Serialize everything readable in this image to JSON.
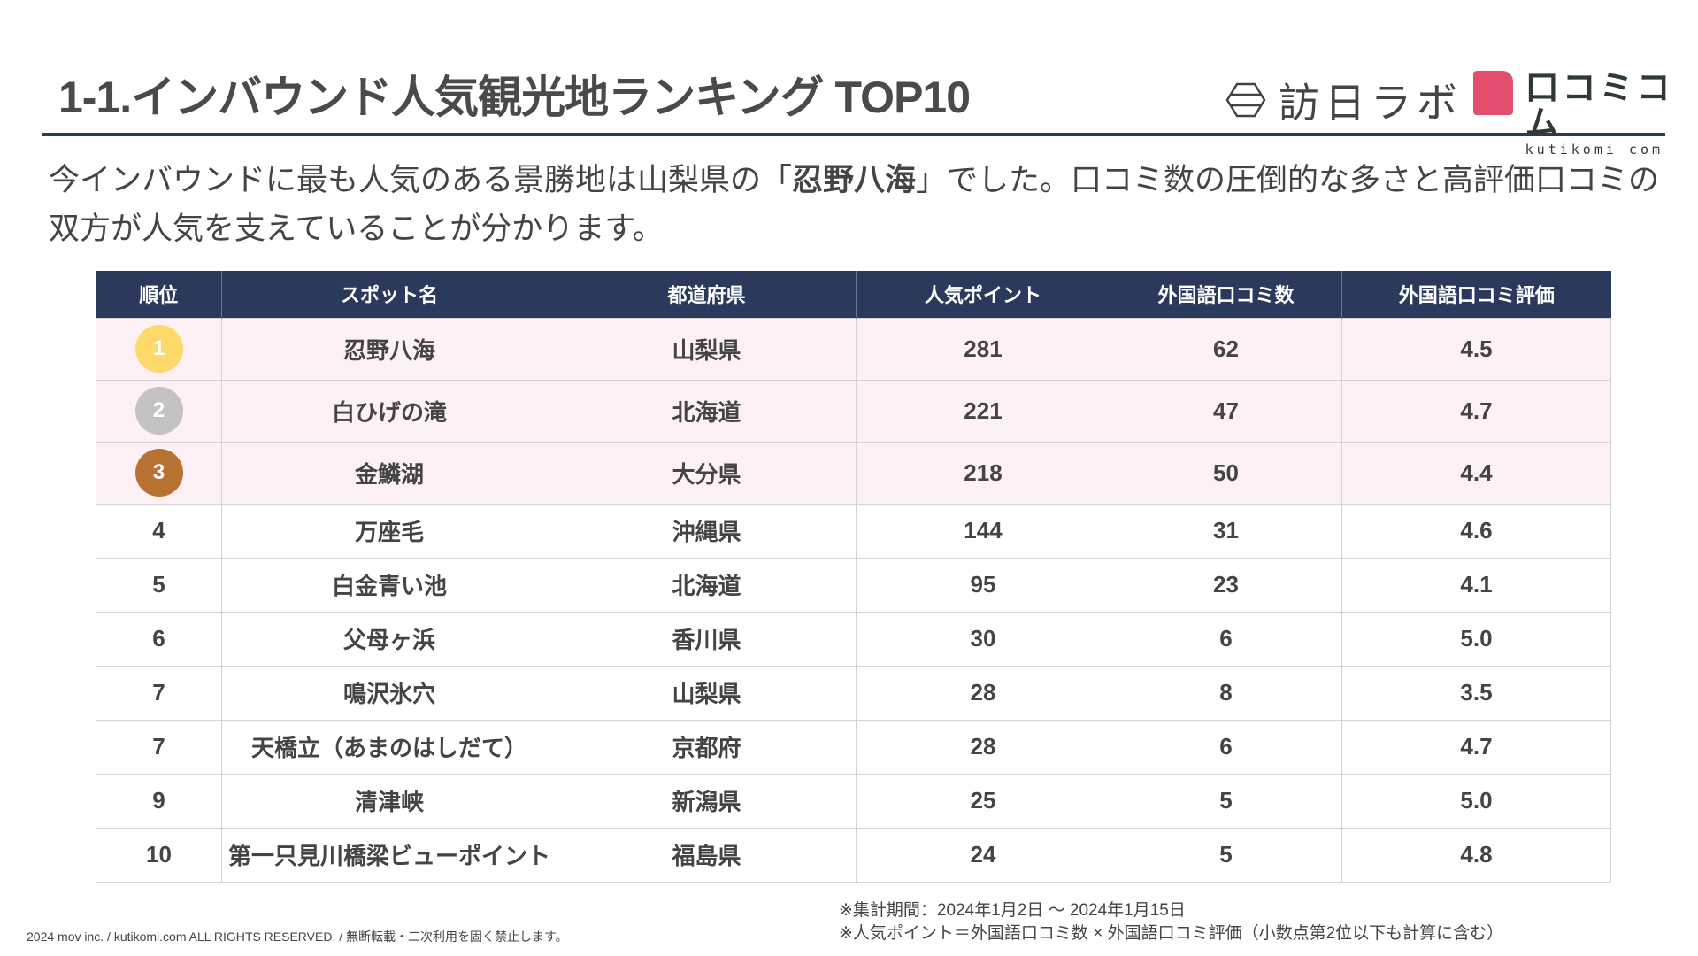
{
  "header": {
    "title": "1-1.インバウンド人気観光地ランキング TOP10",
    "logo_left": "訪日ラボ",
    "logo_right_jp": "口コミコム",
    "logo_right_en": "kutikomi com"
  },
  "lead": {
    "before": "今インバウンドに最も人気のある景勝地は山梨県の「",
    "bold": "忍野八海",
    "after": "」でした。口コミ数の圧倒的な多さと高評価口コミの双方が人気を支えていることが分かります。"
  },
  "table": {
    "columns": [
      "順位",
      "スポット名",
      "都道府県",
      "人気ポイント",
      "外国語口コミ数",
      "外国語口コミ評価"
    ],
    "rows": [
      {
        "rank": "1",
        "name": "忍野八海",
        "pref": "山梨県",
        "points": "281",
        "count": "62",
        "rating": "4.5"
      },
      {
        "rank": "2",
        "name": "白ひげの滝",
        "pref": "北海道",
        "points": "221",
        "count": "47",
        "rating": "4.7"
      },
      {
        "rank": "3",
        "name": "金鱗湖",
        "pref": "大分県",
        "points": "218",
        "count": "50",
        "rating": "4.4"
      },
      {
        "rank": "4",
        "name": "万座毛",
        "pref": "沖縄県",
        "points": "144",
        "count": "31",
        "rating": "4.6"
      },
      {
        "rank": "5",
        "name": "白金青い池",
        "pref": "北海道",
        "points": "95",
        "count": "23",
        "rating": "4.1"
      },
      {
        "rank": "6",
        "name": "父母ヶ浜",
        "pref": "香川県",
        "points": "30",
        "count": "6",
        "rating": "5.0"
      },
      {
        "rank": "7",
        "name": "鳴沢氷穴",
        "pref": "山梨県",
        "points": "28",
        "count": "8",
        "rating": "3.5"
      },
      {
        "rank": "7",
        "name": "天橋立（あまのはしだて）",
        "pref": "京都府",
        "points": "28",
        "count": "6",
        "rating": "4.7"
      },
      {
        "rank": "9",
        "name": "清津峡",
        "pref": "新潟県",
        "points": "25",
        "count": "5",
        "rating": "5.0"
      },
      {
        "rank": "10",
        "name": "第一只見川橋梁ビューポイント",
        "pref": "福島県",
        "points": "24",
        "count": "5",
        "rating": "4.8"
      }
    ],
    "medal_colors": [
      "#fed96a",
      "#c3c3c3",
      "#b87333"
    ],
    "header_color": "#2b3a5c",
    "highlight_color": "#fef1f5"
  },
  "footer": {
    "copyright": "2024 mov inc. / kutikomi.com ALL RIGHTS RESERVED. / 無断転載・二次利用を固く禁止します。",
    "note1": "※集計期間：2024年1月2日 〜 2024年1月15日",
    "note2": "※人気ポイント＝外国語口コミ数 × 外国語口コミ評価（小数点第2位以下も計算に含む）"
  }
}
